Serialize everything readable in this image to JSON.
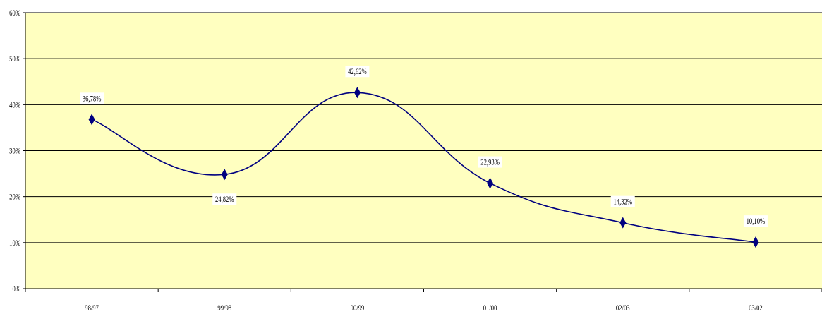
{
  "chart_data": {
    "type": "line",
    "categories": [
      "98/97",
      "99/98",
      "00/99",
      "01/00",
      "02/03",
      "03/02"
    ],
    "series": [
      {
        "values": [
          36.78,
          24.82,
          42.62,
          22.93,
          14.32,
          10.1
        ],
        "data_labels": [
          "36,78%",
          "24,82%",
          "42,62%",
          "22,93%",
          "14,32%",
          "10,10%"
        ]
      }
    ],
    "y_ticks": [
      "0%",
      "10%",
      "20%",
      "30%",
      "40%",
      "50%",
      "60%"
    ],
    "ylim": [
      0,
      60
    ],
    "grid": true,
    "smooth": true,
    "marker": "diamond",
    "colors": {
      "plot_background": "#ffffc0",
      "line": "#000080",
      "marker": "#000080",
      "gridline": "#000000",
      "label_background": "#ffffff"
    }
  }
}
